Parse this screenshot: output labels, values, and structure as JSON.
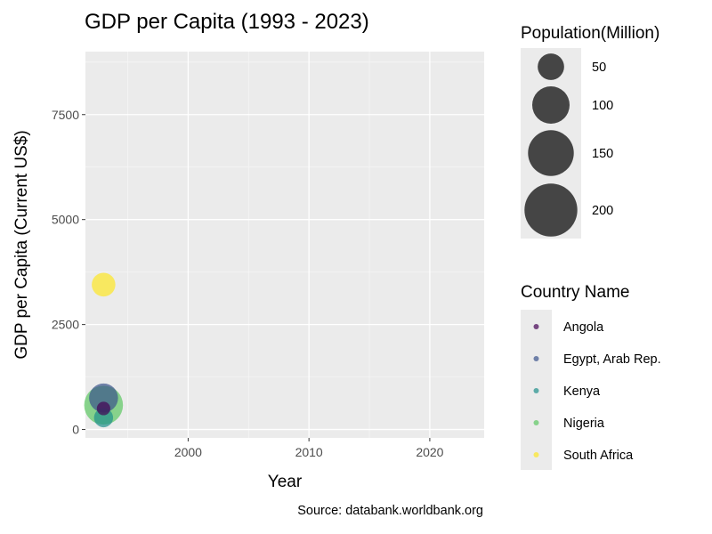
{
  "chart_data": {
    "type": "scatter",
    "title": "GDP per Capita (1993 - 2023)",
    "xlabel": "Year",
    "ylabel": "GDP per Capita (Current US$)",
    "caption": "Source: databank.worldbank.org",
    "xlim": [
      1991.5,
      2024.5
    ],
    "ylim": [
      -200,
      9000
    ],
    "x_ticks": [
      2000,
      2010,
      2020
    ],
    "y_ticks": [
      0,
      2500,
      5000,
      7500
    ],
    "grid": true,
    "legend_position": "right",
    "size_legend": {
      "title": "Population(Million)",
      "entries": [
        {
          "label": "50",
          "value": 50
        },
        {
          "label": "100",
          "value": 100
        },
        {
          "label": "150",
          "value": 150
        },
        {
          "label": "200",
          "value": 200
        }
      ]
    },
    "color_legend": {
      "title": "Country Name",
      "entries": [
        {
          "label": "Angola",
          "color": "#440154"
        },
        {
          "label": "Egypt, Arab Rep.",
          "color": "#3b528b"
        },
        {
          "label": "Kenya",
          "color": "#21908c"
        },
        {
          "label": "Nigeria",
          "color": "#5dc863"
        },
        {
          "label": "South Africa",
          "color": "#fde725"
        }
      ]
    },
    "series": [
      {
        "country": "Egypt, Arab Rep.",
        "x": 1993,
        "y": 750,
        "population": 60,
        "color": "#3b528b"
      },
      {
        "country": "South Africa",
        "x": 1993,
        "y": 3450,
        "population": 40,
        "color": "#fde725"
      },
      {
        "country": "Angola",
        "x": 1993,
        "y": 500,
        "population": 13,
        "color": "#440154"
      },
      {
        "country": "Kenya",
        "x": 1993,
        "y": 280,
        "population": 26,
        "color": "#21908c"
      },
      {
        "country": "Nigeria",
        "x": 1993,
        "y": 580,
        "population": 108,
        "color": "#5dc863"
      }
    ]
  }
}
